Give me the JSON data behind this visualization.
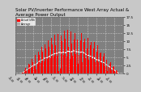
{
  "title": "Solar PV/Inverter Performance West Array Actual & Average Power Output",
  "bar_color": "#ff0000",
  "avg_line_color": "#ffffff",
  "bg_color": "#c8c8c8",
  "plot_bg_color": "#808080",
  "grid_color": "#ffffff",
  "ylim": [
    0,
    17.5
  ],
  "yticks": [
    0.0,
    2.5,
    5.0,
    7.5,
    10.0,
    12.5,
    15.0,
    17.5
  ],
  "ytick_labels": [
    "0",
    "2.5",
    "5",
    "7.5",
    "10",
    "12.5",
    "15",
    "17.5"
  ],
  "n_bars": 2920,
  "title_fontsize": 4.0,
  "tick_fontsize": 3.0,
  "legend_labels": [
    "Actual kWh",
    "Average"
  ],
  "legend_colors": [
    "#ff0000",
    "#aaaaaa"
  ]
}
